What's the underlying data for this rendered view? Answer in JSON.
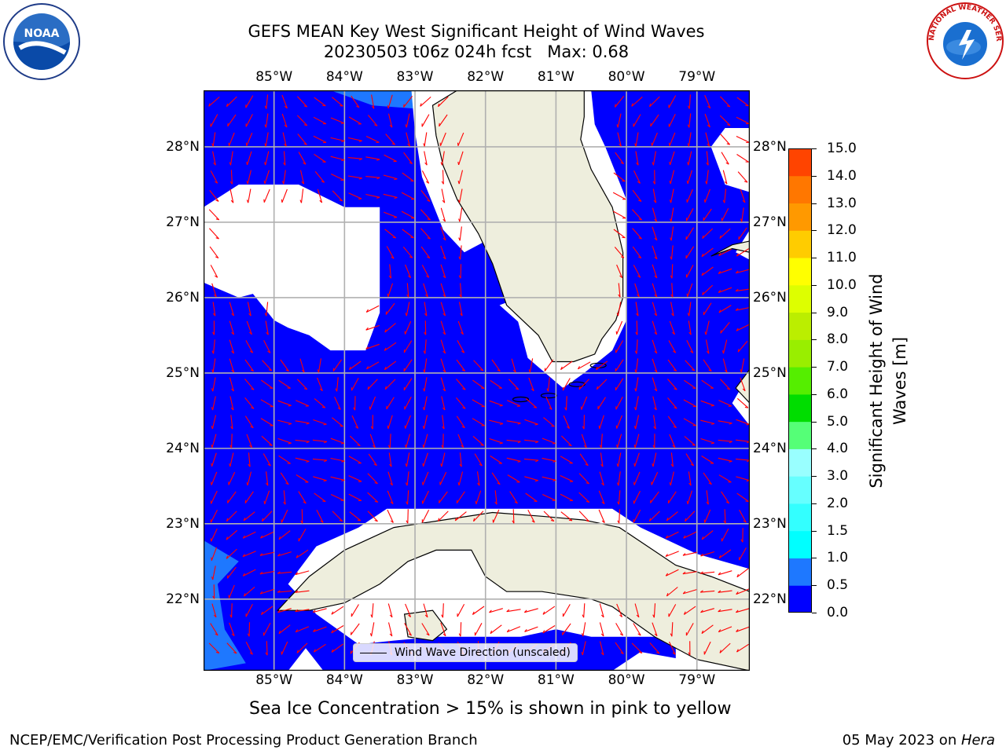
{
  "header": {
    "title_line1": "GEFS MEAN Key West Significant Height of Wind Waves",
    "title_line2": "20230503 t06z 024h fcst   Max: 0.68"
  },
  "map": {
    "longitude_ticks": [
      "85°W",
      "84°W",
      "83°W",
      "82°W",
      "81°W",
      "80°W",
      "79°W"
    ],
    "latitude_ticks": [
      "22°N",
      "23°N",
      "24°N",
      "25°N",
      "26°N",
      "27°N",
      "28°N"
    ],
    "lon_extent": [
      -86.0,
      -78.25
    ],
    "lat_extent": [
      21.05,
      28.75
    ],
    "ocean_color": "#0000ff",
    "shallow_color": "#1e78ff",
    "land_color": "#eeeedd",
    "arrow_color": "#ff0000",
    "grid_color": "#b0b0b0",
    "legend_label": "Wind Wave Direction (unscaled)"
  },
  "colorbar": {
    "label_line1": "Significant Height of Wind",
    "label_line2": "Waves [m]",
    "levels": [
      "0.0",
      "0.5",
      "1.0",
      "1.5",
      "2.0",
      "3.0",
      "4.0",
      "5.0",
      "6.0",
      "7.0",
      "8.0",
      "9.0",
      "10.0",
      "11.0",
      "12.0",
      "13.0",
      "14.0",
      "15.0"
    ],
    "colors": [
      "#0000ff",
      "#1e78ff",
      "#00ffff",
      "#33ffff",
      "#66ffff",
      "#99ffff",
      "#55ff77",
      "#00dd00",
      "#55ee00",
      "#99ee00",
      "#bbee00",
      "#ddff00",
      "#ffff00",
      "#ffcc00",
      "#ff9900",
      "#ff7700",
      "#ff4400",
      "#ff0000"
    ]
  },
  "notes": {
    "sea_ice": "Sea Ice Concentration > 15% is shown in pink to yellow"
  },
  "footer": {
    "left": "NCEP/EMC/Verification Post Processing Product Generation Branch",
    "date": "05 May 2023 on ",
    "machine": "Hera"
  },
  "logos": {
    "noaa_text": "NOAA",
    "nws_text": "NATIONAL WEATHER SERVICE"
  }
}
